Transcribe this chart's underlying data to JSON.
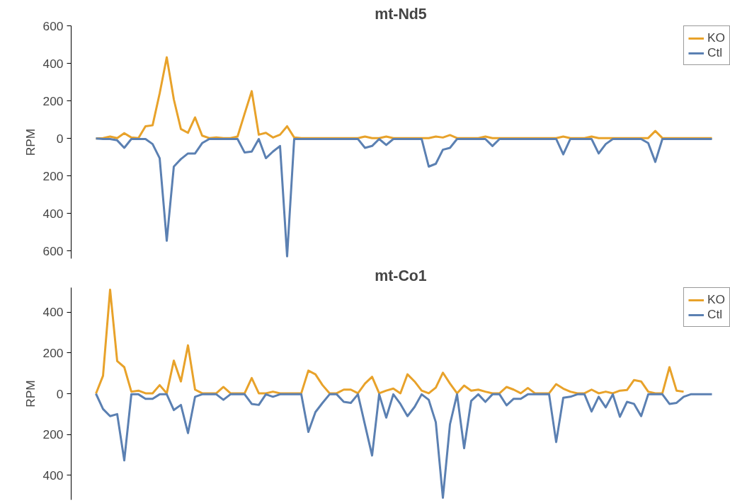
{
  "chart_data": [
    {
      "type": "line",
      "title": "mt-Nd5",
      "ylabel": "RPM",
      "categories": [
        null,
        null,
        null,
        null,
        null,
        null,
        null,
        null,
        null,
        null,
        null,
        null,
        null,
        null,
        null,
        null,
        null,
        null,
        null,
        null,
        null,
        null,
        null,
        null,
        null,
        null,
        null,
        null,
        null,
        null,
        null,
        null,
        null,
        null,
        null,
        null,
        null,
        null,
        null,
        null,
        null,
        null,
        null,
        null,
        null,
        null,
        null,
        null,
        null,
        null,
        null,
        null,
        null,
        null,
        null,
        null,
        null,
        null,
        null,
        null,
        null,
        null,
        null,
        null,
        null,
        null,
        null,
        null,
        null,
        null,
        null,
        null,
        null,
        null,
        null,
        null,
        null,
        null,
        null,
        null,
        null,
        null,
        null,
        null,
        null,
        null,
        null,
        null
      ],
      "series": [
        {
          "name": "KO",
          "color": "#e8a22a",
          "values": [
            0,
            2,
            10,
            2,
            28,
            5,
            2,
            65,
            70,
            240,
            432,
            208,
            50,
            30,
            112,
            15,
            2,
            5,
            2,
            2,
            10,
            132,
            252,
            20,
            30,
            5,
            20,
            65,
            5,
            2,
            2,
            2,
            2,
            2,
            2,
            2,
            2,
            2,
            10,
            2,
            2,
            10,
            2,
            2,
            2,
            2,
            2,
            2,
            10,
            5,
            18,
            2,
            2,
            2,
            2,
            10,
            2,
            2,
            2,
            2,
            2,
            2,
            2,
            2,
            2,
            2,
            10,
            2,
            2,
            2,
            10,
            2,
            2,
            2,
            2,
            2,
            2,
            2,
            2,
            40,
            2,
            2,
            2,
            2,
            2,
            2,
            2,
            2
          ]
        },
        {
          "name": "Ctl",
          "color": "#5b80b2",
          "values": [
            0,
            -3,
            -3,
            -10,
            -50,
            -3,
            -3,
            -3,
            -30,
            -105,
            -545,
            -150,
            -110,
            -80,
            -80,
            -25,
            -3,
            -3,
            -3,
            -3,
            -3,
            -75,
            -70,
            -3,
            -105,
            -70,
            -40,
            -628,
            -3,
            -3,
            -3,
            -3,
            -3,
            -3,
            -3,
            -3,
            -3,
            -3,
            -50,
            -40,
            -3,
            -35,
            -3,
            -3,
            -3,
            -3,
            -3,
            -150,
            -135,
            -60,
            -50,
            -3,
            -3,
            -3,
            -3,
            -3,
            -40,
            -3,
            -3,
            -3,
            -3,
            -3,
            -3,
            -3,
            -3,
            -3,
            -85,
            -3,
            -3,
            -3,
            -3,
            -80,
            -30,
            -3,
            -3,
            -3,
            -3,
            -3,
            -25,
            -125,
            -3,
            -3,
            -3,
            -3,
            -3,
            -3,
            -3,
            -3
          ]
        }
      ],
      "ylim": [
        -640,
        600
      ],
      "yticks": [
        {
          "value": -600,
          "label": "600"
        },
        {
          "value": -400,
          "label": "400"
        },
        {
          "value": -200,
          "label": "200"
        },
        0,
        200,
        400,
        600
      ],
      "tick_labels": "y",
      "legend": "top right",
      "grid": false,
      "marker": "none",
      "line_style": "solid"
    },
    {
      "type": "line",
      "title": "mt-Co1",
      "ylabel": "RPM",
      "categories": [
        null,
        null,
        null,
        null,
        null,
        null,
        null,
        null,
        null,
        null,
        null,
        null,
        null,
        null,
        null,
        null,
        null,
        null,
        null,
        null,
        null,
        null,
        null,
        null,
        null,
        null,
        null,
        null,
        null,
        null,
        null,
        null,
        null,
        null,
        null,
        null,
        null,
        null,
        null,
        null,
        null,
        null,
        null,
        null,
        null,
        null,
        null,
        null,
        null,
        null,
        null,
        null,
        null,
        null,
        null,
        null,
        null,
        null,
        null,
        null,
        null,
        null,
        null,
        null,
        null,
        null,
        null,
        null,
        null,
        null,
        null,
        null,
        null,
        null,
        null,
        null,
        null,
        null,
        null,
        null,
        null,
        null,
        null,
        null,
        null,
        null,
        null,
        null
      ],
      "series": [
        {
          "name": "KO",
          "color": "#e8a22a",
          "values": [
            0,
            88,
            510,
            160,
            130,
            10,
            15,
            2,
            2,
            42,
            2,
            162,
            60,
            237,
            20,
            2,
            2,
            2,
            33,
            2,
            2,
            2,
            77,
            2,
            2,
            10,
            2,
            2,
            2,
            2,
            113,
            95,
            42,
            2,
            2,
            20,
            20,
            2,
            50,
            83,
            2,
            15,
            25,
            2,
            95,
            60,
            15,
            2,
            30,
            103,
            50,
            2,
            40,
            15,
            20,
            10,
            2,
            2,
            33,
            20,
            2,
            28,
            2,
            2,
            2,
            47,
            25,
            10,
            2,
            2,
            20,
            2,
            10,
            2,
            15,
            18,
            67,
            60,
            10,
            2,
            2,
            130,
            15,
            10,
            null,
            null,
            null,
            null
          ]
        },
        {
          "name": "Ctl",
          "color": "#5b80b2",
          "values": [
            0,
            -75,
            -110,
            -100,
            -327,
            -3,
            -3,
            -25,
            -25,
            -3,
            -3,
            -80,
            -55,
            -193,
            -15,
            -3,
            -3,
            -3,
            -30,
            -3,
            -3,
            -3,
            -50,
            -55,
            -3,
            -15,
            -3,
            -3,
            -3,
            -3,
            -187,
            -90,
            -45,
            -3,
            -3,
            -40,
            -45,
            -3,
            -153,
            -303,
            -3,
            -117,
            -3,
            -50,
            -110,
            -65,
            -3,
            -30,
            -140,
            -510,
            -150,
            -3,
            -267,
            -35,
            -3,
            -40,
            -3,
            -3,
            -57,
            -25,
            -25,
            -3,
            -3,
            -3,
            -3,
            -237,
            -20,
            -15,
            -3,
            -3,
            -87,
            -15,
            -67,
            -3,
            -113,
            -40,
            -50,
            -110,
            -3,
            -3,
            -3,
            -50,
            -45,
            -15,
            -3,
            -3,
            -3,
            -3
          ]
        }
      ],
      "ylim": [
        -520,
        520
      ],
      "yticks": [
        {
          "value": -400,
          "label": "400"
        },
        {
          "value": -200,
          "label": "200"
        },
        0,
        200,
        400
      ],
      "tick_labels": "y",
      "legend": "top right",
      "grid": false,
      "marker": "none",
      "line_style": "solid"
    }
  ]
}
